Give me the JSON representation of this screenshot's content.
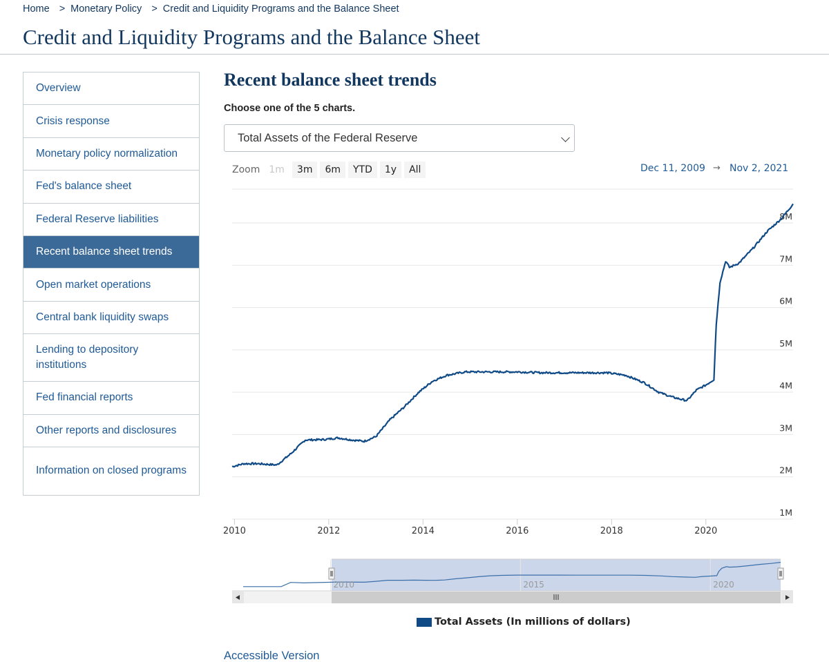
{
  "breadcrumb": {
    "home": "Home",
    "sep": ">",
    "level1": "Monetary Policy",
    "level2": "Credit and Liquidity Programs and the Balance Sheet"
  },
  "page_title": "Credit and Liquidity Programs and the Balance Sheet",
  "sidebar": {
    "items": [
      {
        "label": "Overview"
      },
      {
        "label": "Crisis response"
      },
      {
        "label": "Monetary policy normalization"
      },
      {
        "label": "Fed's balance sheet"
      },
      {
        "label": "Federal Reserve liabilities"
      },
      {
        "label": "Recent balance sheet trends"
      },
      {
        "label": "Open market operations"
      },
      {
        "label": "Central bank liquidity swaps"
      },
      {
        "label": "Lending to depository institutions"
      },
      {
        "label": "Fed financial reports"
      },
      {
        "label": "Other reports and disclosures"
      },
      {
        "label": "Information on closed programs"
      }
    ],
    "active_index": 5
  },
  "main": {
    "section_title": "Recent balance sheet trends",
    "choose_label": "Choose one of the 5 charts.",
    "select_value": "Total Assets of the Federal Reserve",
    "zoom": {
      "label": "Zoom",
      "buttons": [
        "1m",
        "3m",
        "6m",
        "YTD",
        "1y",
        "All"
      ],
      "disabled": "1m"
    },
    "range": {
      "from": "Dec 11, 2009",
      "arrow": "→",
      "to": "Nov 2, 2021"
    },
    "legend_label": "Total Assets (In millions of dollars)",
    "accessible_link": "Accessible Version"
  },
  "colors": {
    "series": "#0f4a86",
    "active_nav": "#3b6a98",
    "link": "#1f5a96",
    "navigator_fill": "#ccd6eb"
  },
  "chart_data": {
    "type": "line",
    "title": "",
    "xlabel": "",
    "ylabel": "",
    "x_ticks": [
      "2010",
      "2012",
      "2014",
      "2016",
      "2018",
      "2020"
    ],
    "y_ticks": [
      "1M",
      "2M",
      "3M",
      "4M",
      "5M",
      "6M",
      "7M",
      "8M"
    ],
    "xlim": [
      2009.95,
      2021.85
    ],
    "ylim": [
      1000000,
      8800000
    ],
    "grid": "horizontal",
    "legend": "bottom",
    "series": [
      {
        "name": "Total Assets (In millions of dollars)",
        "x": [
          2009.95,
          2010.2,
          2010.5,
          2010.9,
          2011.2,
          2011.5,
          2011.9,
          2012.2,
          2012.5,
          2012.75,
          2013.0,
          2013.3,
          2013.6,
          2013.9,
          2014.2,
          2014.5,
          2014.9,
          2015.5,
          2016.0,
          2016.5,
          2017.0,
          2017.5,
          2017.9,
          2018.3,
          2018.7,
          2019.0,
          2019.3,
          2019.6,
          2019.8,
          2020.0,
          2020.17,
          2020.22,
          2020.3,
          2020.42,
          2020.5,
          2020.7,
          2021.0,
          2021.3,
          2021.6,
          2021.85
        ],
        "values": [
          2240000,
          2310000,
          2310000,
          2280000,
          2550000,
          2870000,
          2880000,
          2920000,
          2870000,
          2840000,
          2950000,
          3350000,
          3650000,
          3990000,
          4260000,
          4400000,
          4480000,
          4480000,
          4480000,
          4460000,
          4460000,
          4460000,
          4460000,
          4400000,
          4220000,
          4000000,
          3880000,
          3800000,
          4050000,
          4170000,
          4300000,
          5600000,
          6600000,
          7100000,
          6950000,
          7050000,
          7400000,
          7800000,
          8100000,
          8450000
        ]
      }
    ],
    "navigator": {
      "labels": [
        "2010",
        "2015",
        "2020"
      ],
      "window": [
        "Dec 11, 2009",
        "Nov 2, 2021"
      ]
    }
  }
}
